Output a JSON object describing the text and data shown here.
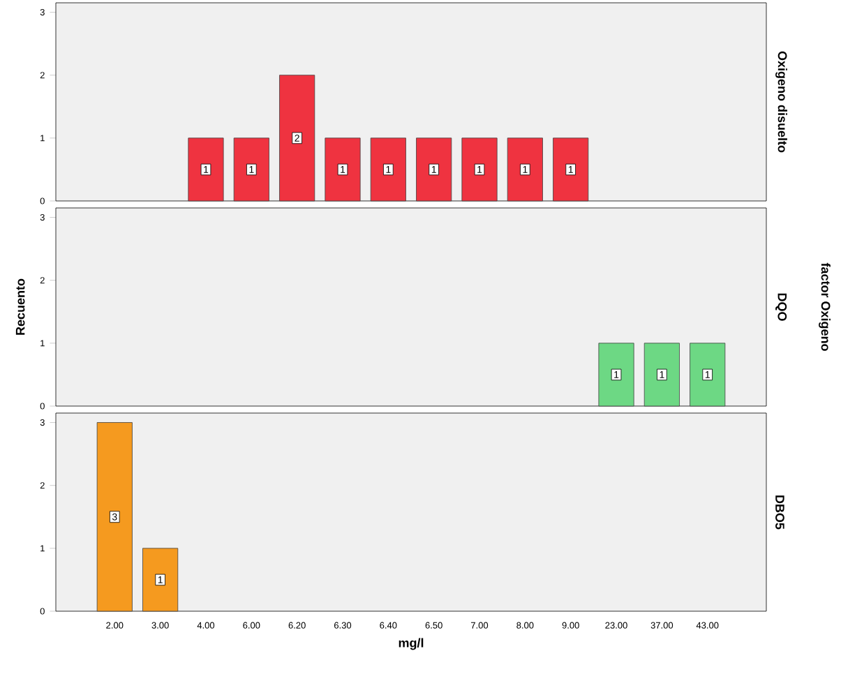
{
  "chart_data": [
    {
      "type": "bar",
      "y2label": "Oxigeno disuelto",
      "categories": [
        "2.00",
        "3.00",
        "4.00",
        "6.00",
        "6.20",
        "6.30",
        "6.40",
        "6.50",
        "7.00",
        "8.00",
        "9.00",
        "23.00",
        "37.00",
        "43.00"
      ],
      "values": [
        null,
        null,
        1,
        1,
        2,
        1,
        1,
        1,
        1,
        1,
        1,
        null,
        null,
        null
      ],
      "color": "#ef3340",
      "ylim": [
        0,
        3.15
      ],
      "yticks": [
        0,
        1,
        2,
        3
      ],
      "data_labels": true,
      "tick_labels": "y"
    },
    {
      "type": "bar",
      "y2label": "DQO",
      "ylabel": "Recuento",
      "annotations": [
        "factor Oxigeno"
      ],
      "categories": [
        "2.00",
        "3.00",
        "4.00",
        "6.00",
        "6.20",
        "6.30",
        "6.40",
        "6.50",
        "7.00",
        "8.00",
        "9.00",
        "23.00",
        "37.00",
        "43.00"
      ],
      "values": [
        null,
        null,
        null,
        null,
        null,
        null,
        null,
        null,
        null,
        null,
        null,
        1,
        1,
        1
      ],
      "color": "#6dd884",
      "ylim": [
        0,
        3.15
      ],
      "yticks": [
        0,
        1,
        2,
        3
      ],
      "data_labels": true,
      "tick_labels": "y"
    },
    {
      "type": "bar",
      "y2label": "DBO5",
      "xlabel": "mg/l",
      "categories": [
        "2.00",
        "3.00",
        "4.00",
        "6.00",
        "6.20",
        "6.30",
        "6.40",
        "6.50",
        "7.00",
        "8.00",
        "9.00",
        "23.00",
        "37.00",
        "43.00"
      ],
      "values": [
        3,
        1,
        null,
        null,
        null,
        null,
        null,
        null,
        null,
        null,
        null,
        null,
        null,
        null
      ],
      "color": "#f59a1f",
      "ylim": [
        0,
        3.15
      ],
      "yticks": [
        0,
        1,
        2,
        3
      ],
      "data_labels": true
    }
  ]
}
